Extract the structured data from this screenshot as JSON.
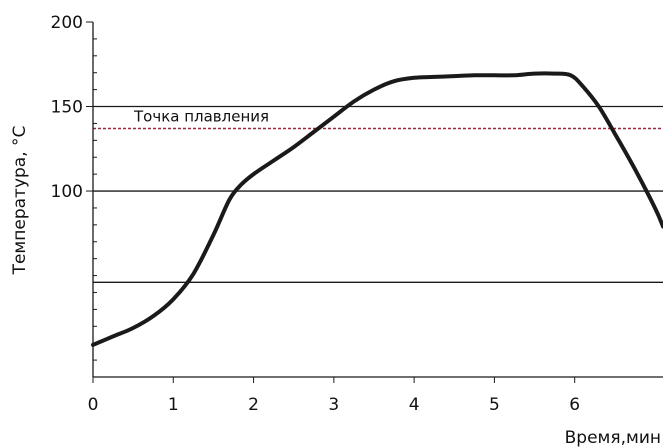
{
  "chart_data": {
    "type": "line",
    "xlabel": "Время,мин",
    "ylabel": "Температура, °C",
    "xlim": [
      0,
      7.1
    ],
    "ylim": [
      -10,
      200
    ],
    "x_ticks": [
      0,
      1,
      2,
      3,
      4,
      5,
      6
    ],
    "y_ticks": [
      100,
      150,
      200
    ],
    "y_minor_step": 10,
    "grid_lines_y": [
      46,
      100,
      150
    ],
    "annotation": {
      "text": "Точка плавления",
      "y": 137
    },
    "series": [
      {
        "color": "#1a1a1a",
        "x": [
          0,
          0.25,
          0.5,
          0.75,
          1.0,
          1.25,
          1.5,
          1.7,
          1.85,
          2.0,
          2.25,
          2.5,
          2.75,
          3.0,
          3.25,
          3.5,
          3.75,
          4.0,
          4.25,
          4.5,
          4.75,
          5.0,
          5.25,
          5.5,
          5.75,
          5.95,
          6.1,
          6.3,
          6.5,
          6.75,
          7.0,
          7.1
        ],
        "y": [
          9,
          14,
          19,
          26,
          36,
          51,
          74,
          95,
          104,
          110,
          118,
          126,
          135,
          144,
          153,
          160,
          165,
          167,
          167.5,
          168,
          168.5,
          168.5,
          168.5,
          169.5,
          169.5,
          168.5,
          162,
          150,
          134,
          113,
          90,
          79
        ]
      }
    ],
    "colors": {
      "series": "#1a1a1a",
      "annotation_line": "#a0263d",
      "grid": "#1a1a1a",
      "axis": "#1a1a1a"
    }
  }
}
